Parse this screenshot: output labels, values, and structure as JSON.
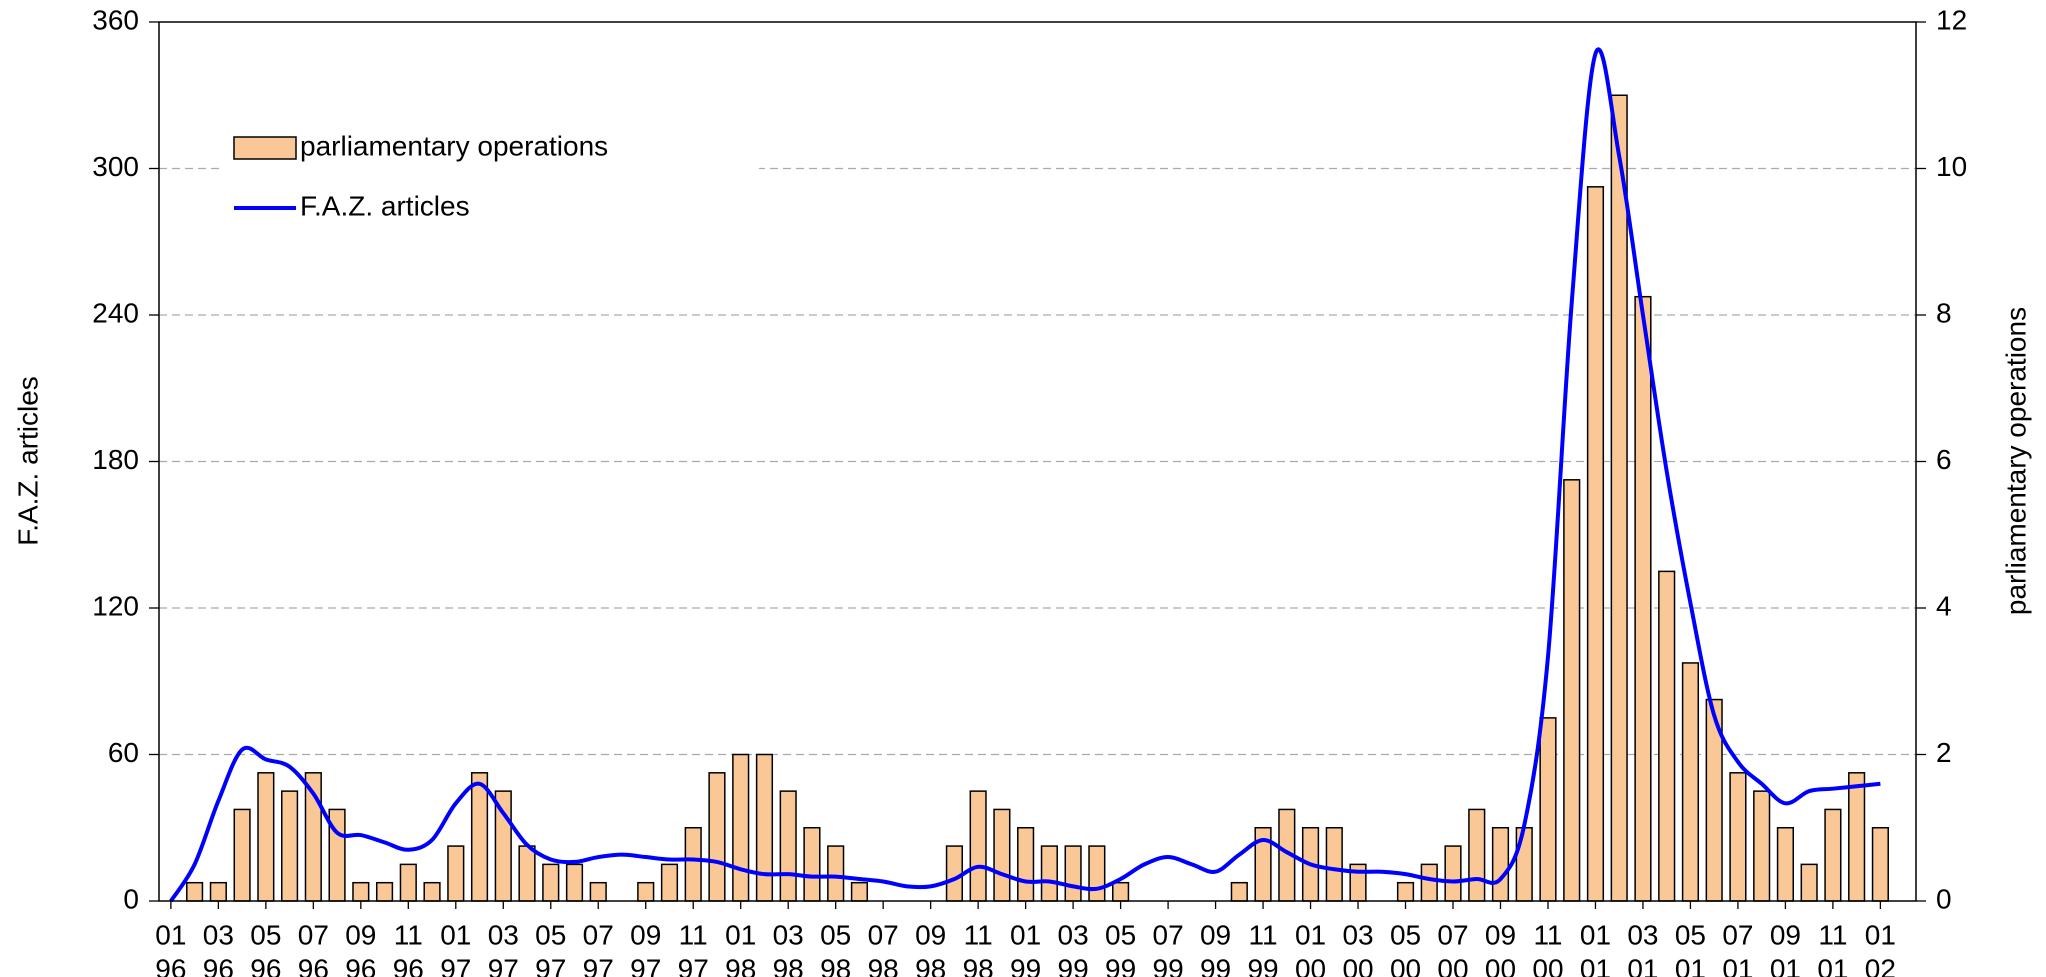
{
  "chart_data": {
    "type": "bar_line",
    "categories": [
      [
        "01",
        "96"
      ],
      null,
      [
        "03",
        "96"
      ],
      null,
      [
        "05",
        "96"
      ],
      null,
      [
        "07",
        "96"
      ],
      null,
      [
        "09",
        "96"
      ],
      null,
      [
        "11",
        "96"
      ],
      null,
      [
        "01",
        "97"
      ],
      null,
      [
        "03",
        "97"
      ],
      null,
      [
        "05",
        "97"
      ],
      null,
      [
        "07",
        "97"
      ],
      null,
      [
        "09",
        "97"
      ],
      null,
      [
        "11",
        "97"
      ],
      null,
      [
        "01",
        "98"
      ],
      null,
      [
        "03",
        "98"
      ],
      null,
      [
        "05",
        "98"
      ],
      null,
      [
        "07",
        "98"
      ],
      null,
      [
        "09",
        "98"
      ],
      null,
      [
        "11",
        "98"
      ],
      null,
      [
        "01",
        "99"
      ],
      null,
      [
        "03",
        "99"
      ],
      null,
      [
        "05",
        "99"
      ],
      null,
      [
        "07",
        "99"
      ],
      null,
      [
        "09",
        "99"
      ],
      null,
      [
        "11",
        "99"
      ],
      null,
      [
        "01",
        "00"
      ],
      null,
      [
        "03",
        "00"
      ],
      null,
      [
        "05",
        "00"
      ],
      null,
      [
        "07",
        "00"
      ],
      null,
      [
        "09",
        "00"
      ],
      null,
      [
        "11",
        "00"
      ],
      null,
      [
        "01",
        "01"
      ],
      null,
      [
        "03",
        "01"
      ],
      null,
      [
        "05",
        "01"
      ],
      null,
      [
        "07",
        "01"
      ],
      null,
      [
        "09",
        "01"
      ],
      null,
      [
        "11",
        "01"
      ],
      null,
      [
        "01",
        "02"
      ]
    ],
    "series": [
      {
        "name": "parliamentary operations",
        "color": "#fac896",
        "axis": "y2",
        "kind": "bar",
        "values": [
          0,
          0.25,
          0.25,
          1.25,
          1.75,
          1.5,
          1.75,
          1.25,
          0.25,
          0.25,
          0.5,
          0.25,
          0.75,
          1.75,
          1.5,
          0.75,
          0.5,
          0.5,
          0.25,
          0,
          0.25,
          0.5,
          1,
          1.75,
          2,
          2,
          1.5,
          1,
          0.75,
          0.25,
          0,
          0,
          0,
          0.75,
          1.5,
          1.25,
          1,
          0.75,
          0.75,
          0.75,
          0.25,
          0,
          0,
          0,
          0,
          0.25,
          1,
          1.25,
          1,
          1,
          0.5,
          0,
          0.25,
          0.5,
          0.75,
          1.25,
          1,
          1,
          2.5,
          5.75,
          9.75,
          11,
          8.25,
          4.5,
          3.25,
          2.75,
          1.75,
          1.5,
          1,
          0.5,
          1.25,
          1.75,
          1
        ]
      },
      {
        "name": "F.A.Z. articles",
        "color": "#0000ff",
        "kind": "line",
        "values": [
          0,
          15,
          41,
          62,
          58,
          55,
          44,
          28,
          27,
          24,
          21,
          25,
          40,
          48,
          36,
          23,
          17,
          16,
          18,
          19,
          18,
          17,
          17,
          16,
          13,
          11,
          11,
          10,
          10,
          9,
          8,
          6,
          6,
          9,
          14,
          11,
          8,
          8,
          6,
          5,
          9,
          15,
          18,
          15,
          12,
          19,
          25,
          20,
          15,
          13,
          12,
          12,
          11,
          9,
          8,
          9,
          9,
          31,
          100,
          245,
          347,
          305,
          240,
          176,
          122,
          76,
          57,
          48,
          40,
          45,
          46,
          47,
          48
        ]
      }
    ],
    "y_label": "F.A.Z. articles",
    "y2_label": "parliamentary operations",
    "ylim": [
      0,
      360
    ],
    "yticks": [
      0,
      60,
      120,
      180,
      240,
      300,
      360
    ],
    "y2lim": [
      0,
      12
    ],
    "y2ticks": [
      0,
      2,
      4,
      6,
      8,
      10,
      12
    ],
    "grid": true,
    "legend": "upper left"
  }
}
